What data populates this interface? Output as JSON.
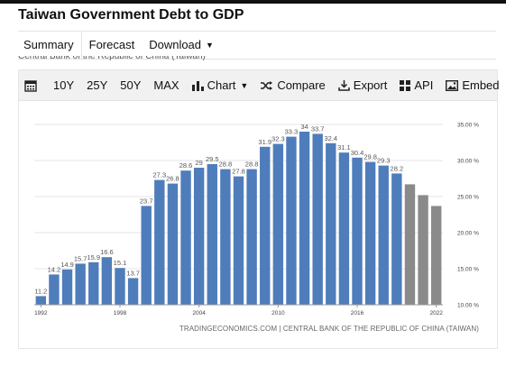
{
  "page": {
    "title": "Taiwan Government Debt to GDP",
    "clipped_subtitle": "Central Bank of the Republic of China (Taiwan)"
  },
  "tabs": [
    {
      "label": "Summary"
    },
    {
      "label": "Forecast"
    },
    {
      "label": "Download"
    }
  ],
  "toolbar": {
    "calendar_icon": "calendar-icon",
    "ranges": [
      "10Y",
      "25Y",
      "50Y",
      "MAX"
    ],
    "chart_label": "Chart",
    "compare_label": "Compare",
    "export_label": "Export",
    "api_label": "API",
    "embed_label": "Embed"
  },
  "source": "TRADINGECONOMICS.COM | CENTRAL BANK OF THE REPUBLIC OF CHINA (TAIWAN)",
  "colors": {
    "actual_bar": "#4f7dbb",
    "forecast_bar": "#8a8a8a",
    "grid": "#e6e6e6"
  },
  "chart_data": {
    "type": "bar",
    "title": "",
    "xlabel": "",
    "ylabel": "",
    "x": [
      1992,
      1993,
      1994,
      1995,
      1996,
      1997,
      1998,
      1999,
      2000,
      2001,
      2002,
      2003,
      2004,
      2005,
      2006,
      2007,
      2008,
      2009,
      2010,
      2011,
      2012,
      2013,
      2014,
      2015,
      2016,
      2017,
      2018,
      2019,
      2020,
      2021,
      2022
    ],
    "x_tick_labels": [
      "1992",
      "1998",
      "2004",
      "2010",
      "2016",
      "2022"
    ],
    "x_tick_values": [
      1992,
      1998,
      2004,
      2010,
      2016,
      2022
    ],
    "series": [
      {
        "values": [
          11.2,
          14.2,
          14.9,
          15.7,
          15.9,
          16.6,
          15.1,
          13.7,
          23.7,
          27.3,
          26.8,
          28.6,
          29,
          29.5,
          28.8,
          27.8,
          28.8,
          31.9,
          32.3,
          33.3,
          34,
          33.7,
          32.4,
          31.1,
          30.4,
          29.8,
          29.3,
          28.2,
          null,
          null,
          null
        ],
        "data_labels": [
          "11.2",
          "14.2",
          "14.9",
          "15.7",
          "15.9",
          "16.6",
          "15.1",
          "13.7",
          "23.7",
          "27.3",
          "26.8",
          "28.6",
          "29",
          "29.5",
          "28.8",
          "27.8",
          "28.8",
          "31.9",
          "32.3",
          "33.3",
          "34",
          "33.7",
          "32.4",
          "31.1",
          "30.4",
          "29.8",
          "29.3",
          "28.2",
          "",
          "",
          ""
        ]
      },
      {
        "values": [
          null,
          null,
          null,
          null,
          null,
          null,
          null,
          null,
          null,
          null,
          null,
          null,
          null,
          null,
          null,
          null,
          null,
          null,
          null,
          null,
          null,
          null,
          null,
          null,
          null,
          null,
          null,
          null,
          26.7,
          25.2,
          23.7
        ]
      }
    ],
    "y_tick_labels": [
      "10.00 %",
      "15.00 %",
      "20.00 %",
      "25.00 %",
      "30.00 %",
      "35.00 %"
    ],
    "y_tick_values": [
      10,
      15,
      20,
      25,
      30,
      35
    ],
    "ylim": [
      10,
      35
    ],
    "grid": true,
    "y_axis_side": "right"
  }
}
